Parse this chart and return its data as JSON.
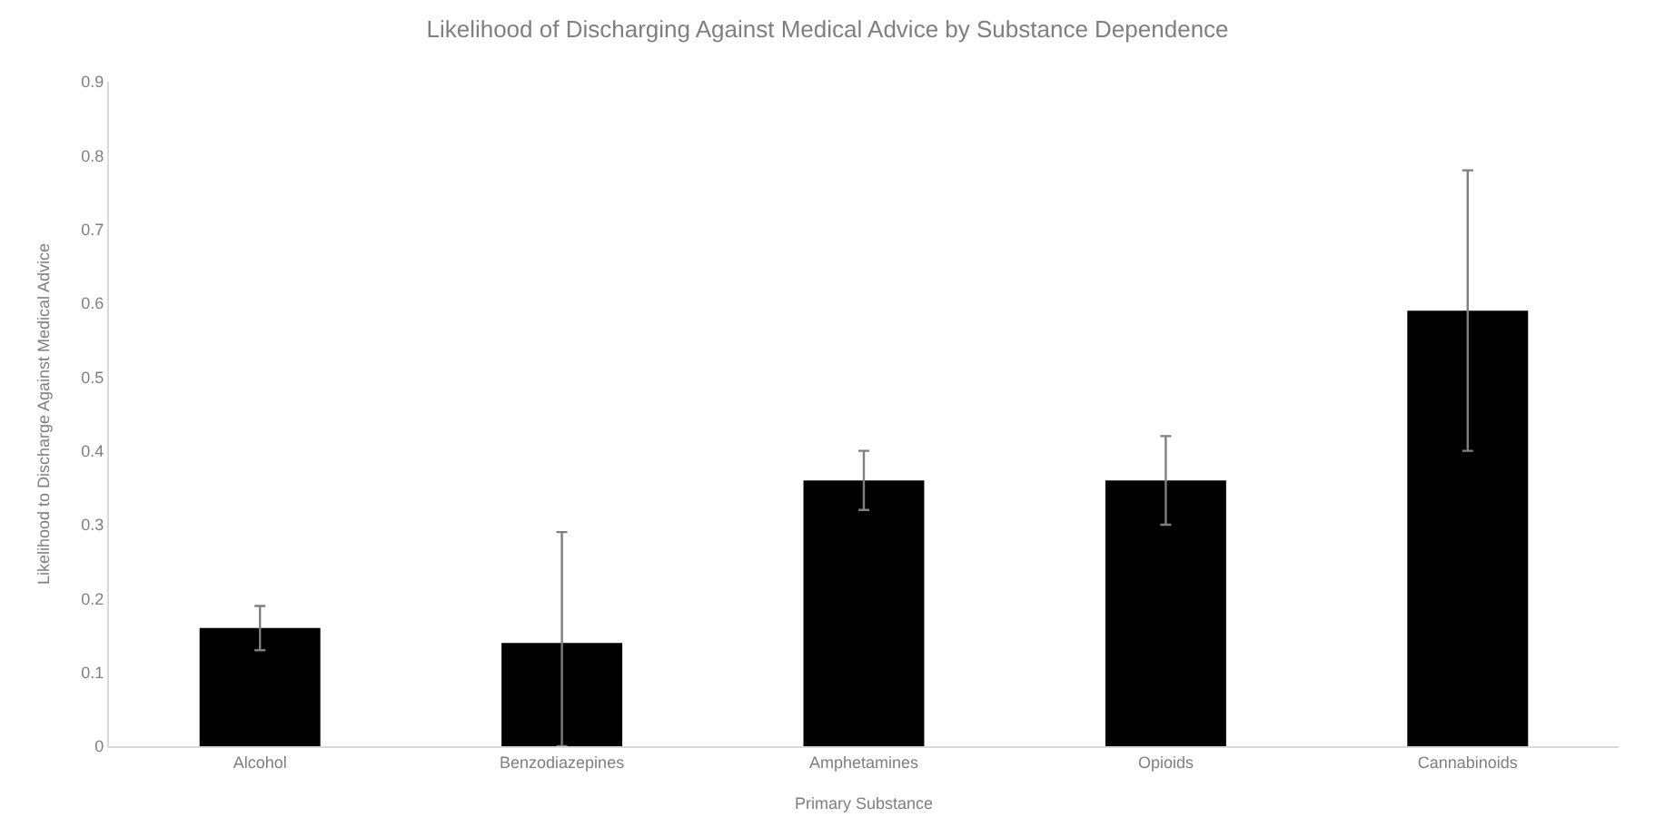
{
  "chart_data": {
    "type": "bar",
    "title": "Likelihood of Discharging Against Medical Advice by Substance Dependence",
    "xlabel": "Primary Substance",
    "ylabel": "Likelihood to Discharge Against Medical Advice",
    "categories": [
      "Alcohol",
      "Benzodiazepines",
      "Amphetamines",
      "Opioids",
      "Cannabinoids"
    ],
    "values": [
      0.16,
      0.14,
      0.36,
      0.36,
      0.59
    ],
    "errors": [
      [
        0.13,
        0.19
      ],
      [
        0,
        0.29
      ],
      [
        0.32,
        0.4
      ],
      [
        0.3,
        0.42
      ],
      [
        0.4,
        0.78
      ]
    ],
    "color": "#000000",
    "ylim": [
      0,
      0.9
    ],
    "yticks": [
      0,
      0.1,
      0.2,
      0.3,
      0.4,
      0.5,
      0.6,
      0.7,
      0.8,
      0.9
    ]
  }
}
